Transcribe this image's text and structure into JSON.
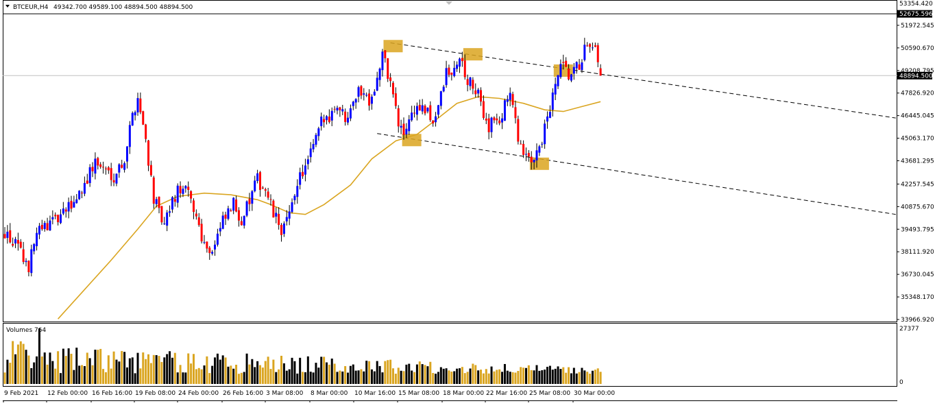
{
  "header": {
    "symbol_label": "BTCEUR,H4",
    "ohlc_text": "49342.700 49589.100 48894.500 48894.500"
  },
  "volume_panel": {
    "label": "Volumes 764",
    "axis_top": "27377",
    "axis_bottom": "0"
  },
  "price_tags": {
    "resistance_line": "52675.596",
    "current_price": "48894.500"
  },
  "colors": {
    "background": "#ffffff",
    "bull_candle": "#0000ff",
    "bear_candle": "#ff0000",
    "wick": "#000000",
    "moving_average": "#daa520",
    "highlight_box": "#daa520",
    "volume_up": "#000000",
    "volume_down": "#daa520",
    "trendline": "#000000",
    "current_price_line": "#c0c0c0"
  },
  "chart_data": {
    "type": "candlestick",
    "title": "BTCEUR,H4",
    "timeframe": "H4",
    "ylim": [
      33966.92,
      53354.42
    ],
    "y_ticks": [
      "53354.420",
      "51972.545",
      "50590.670",
      "49208.795",
      "47826.920",
      "46445.045",
      "45063.170",
      "43681.295",
      "42257.545",
      "40875.670",
      "39493.795",
      "38111.920",
      "36730.045",
      "35348.170",
      "33966.920"
    ],
    "x_ticks": [
      "9 Feb 2021",
      "12 Feb 00:00",
      "16 Feb 16:00",
      "19 Feb 08:00",
      "24 Feb 00:00",
      "26 Feb 16:00",
      "3 Mar 08:00",
      "8 Mar 00:00",
      "10 Mar 16:00",
      "15 Mar 08:00",
      "18 Mar 00:00",
      "22 Mar 16:00",
      "25 Mar 08:00",
      "30 Mar 00:00"
    ],
    "last": {
      "open": 49342.7,
      "high": 49589.1,
      "low": 48894.5,
      "close": 48894.5
    },
    "horizontal_line": 52675.596,
    "current_price": 48894.5,
    "close_path": [
      {
        "i": 0,
        "p": 39300
      },
      {
        "i": 4,
        "p": 38500
      },
      {
        "i": 9,
        "p": 37200
      },
      {
        "i": 12,
        "p": 39200
      },
      {
        "i": 17,
        "p": 39900
      },
      {
        "i": 21,
        "p": 40200
      },
      {
        "i": 26,
        "p": 41200
      },
      {
        "i": 30,
        "p": 42300
      },
      {
        "i": 34,
        "p": 43600
      },
      {
        "i": 37,
        "p": 43200
      },
      {
        "i": 41,
        "p": 42800
      },
      {
        "i": 45,
        "p": 43800
      },
      {
        "i": 48,
        "p": 46500
      },
      {
        "i": 50,
        "p": 47600
      },
      {
        "i": 53,
        "p": 45000
      },
      {
        "i": 56,
        "p": 41400
      },
      {
        "i": 58,
        "p": 40400
      },
      {
        "i": 60,
        "p": 39600
      },
      {
        "i": 63,
        "p": 41200
      },
      {
        "i": 66,
        "p": 42000
      },
      {
        "i": 69,
        "p": 41600
      },
      {
        "i": 72,
        "p": 40300
      },
      {
        "i": 75,
        "p": 38600
      },
      {
        "i": 78,
        "p": 38200
      },
      {
        "i": 82,
        "p": 39900
      },
      {
        "i": 86,
        "p": 41000
      },
      {
        "i": 89,
        "p": 40100
      },
      {
        "i": 92,
        "p": 41200
      },
      {
        "i": 95,
        "p": 42500
      },
      {
        "i": 98,
        "p": 41900
      },
      {
        "i": 101,
        "p": 40400
      },
      {
        "i": 104,
        "p": 39500
      },
      {
        "i": 107,
        "p": 40200
      },
      {
        "i": 110,
        "p": 42500
      },
      {
        "i": 113,
        "p": 43200
      },
      {
        "i": 116,
        "p": 44500
      },
      {
        "i": 119,
        "p": 46000
      },
      {
        "i": 122,
        "p": 46500
      },
      {
        "i": 125,
        "p": 47200
      },
      {
        "i": 128,
        "p": 46300
      },
      {
        "i": 131,
        "p": 47600
      },
      {
        "i": 134,
        "p": 48000
      },
      {
        "i": 137,
        "p": 47500
      },
      {
        "i": 140,
        "p": 48600
      },
      {
        "i": 142,
        "p": 50200
      },
      {
        "i": 144,
        "p": 49000
      },
      {
        "i": 146,
        "p": 47800
      },
      {
        "i": 148,
        "p": 45800
      },
      {
        "i": 150,
        "p": 45300
      },
      {
        "i": 152,
        "p": 46300
      },
      {
        "i": 155,
        "p": 47000
      },
      {
        "i": 158,
        "p": 46700
      },
      {
        "i": 161,
        "p": 46100
      },
      {
        "i": 164,
        "p": 47600
      },
      {
        "i": 166,
        "p": 49100
      },
      {
        "i": 168,
        "p": 48800
      },
      {
        "i": 170,
        "p": 49800
      },
      {
        "i": 172,
        "p": 49600
      },
      {
        "i": 174,
        "p": 48500
      },
      {
        "i": 176,
        "p": 48200
      },
      {
        "i": 178,
        "p": 47600
      },
      {
        "i": 180,
        "p": 46600
      },
      {
        "i": 182,
        "p": 45800
      },
      {
        "i": 184,
        "p": 46400
      },
      {
        "i": 186,
        "p": 45700
      },
      {
        "i": 188,
        "p": 47400
      },
      {
        "i": 190,
        "p": 47800
      },
      {
        "i": 192,
        "p": 45900
      },
      {
        "i": 194,
        "p": 44600
      },
      {
        "i": 196,
        "p": 43700
      },
      {
        "i": 198,
        "p": 43600
      },
      {
        "i": 200,
        "p": 44500
      },
      {
        "i": 202,
        "p": 45000
      },
      {
        "i": 204,
        "p": 46200
      },
      {
        "i": 206,
        "p": 47500
      },
      {
        "i": 208,
        "p": 49000
      },
      {
        "i": 210,
        "p": 49400
      },
      {
        "i": 212,
        "p": 48700
      },
      {
        "i": 214,
        "p": 49100
      },
      {
        "i": 216,
        "p": 49500
      },
      {
        "i": 218,
        "p": 50500
      },
      {
        "i": 220,
        "p": 50300
      },
      {
        "i": 222,
        "p": 50300
      },
      {
        "i": 224,
        "p": 48894.5
      }
    ],
    "moving_average": [
      {
        "i": 20,
        "p": 34000
      },
      {
        "i": 30,
        "p": 35800
      },
      {
        "i": 40,
        "p": 37600
      },
      {
        "i": 50,
        "p": 39500
      },
      {
        "i": 57,
        "p": 40900
      },
      {
        "i": 65,
        "p": 41500
      },
      {
        "i": 75,
        "p": 41700
      },
      {
        "i": 85,
        "p": 41600
      },
      {
        "i": 95,
        "p": 41300
      },
      {
        "i": 100,
        "p": 41000
      },
      {
        "i": 107,
        "p": 40500
      },
      {
        "i": 113,
        "p": 40400
      },
      {
        "i": 120,
        "p": 41000
      },
      {
        "i": 130,
        "p": 42200
      },
      {
        "i": 138,
        "p": 43800
      },
      {
        "i": 147,
        "p": 44900
      },
      {
        "i": 155,
        "p": 45300
      },
      {
        "i": 163,
        "p": 46300
      },
      {
        "i": 170,
        "p": 47200
      },
      {
        "i": 178,
        "p": 47600
      },
      {
        "i": 186,
        "p": 47500
      },
      {
        "i": 195,
        "p": 47200
      },
      {
        "i": 203,
        "p": 46800
      },
      {
        "i": 210,
        "p": 46700
      },
      {
        "i": 217,
        "p": 47000
      },
      {
        "i": 224,
        "p": 47300
      }
    ],
    "trendlines": [
      {
        "from": {
          "i": 145,
          "p": 50900
        },
        "to": {
          "i": 335,
          "p": 46300
        }
      },
      {
        "from": {
          "i": 140,
          "p": 45350
        },
        "to": {
          "i": 335,
          "p": 40400
        }
      }
    ],
    "highlight_zones": [
      {
        "i": 146,
        "p": 50700
      },
      {
        "i": 176,
        "p": 50200
      },
      {
        "i": 153,
        "p": 44950
      },
      {
        "i": 201,
        "p": 43500
      },
      {
        "i": 210,
        "p": 49200
      }
    ],
    "volume_max": 27377
  }
}
